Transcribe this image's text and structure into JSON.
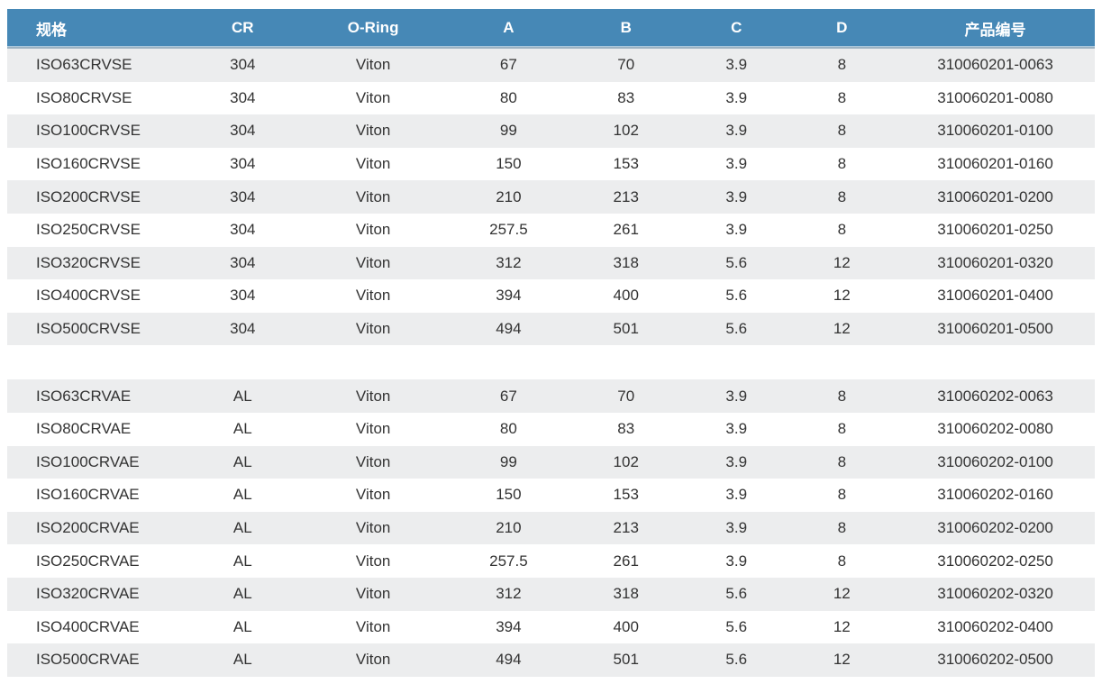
{
  "colors": {
    "header_bg": "#4688b6",
    "header_text": "#ffffff",
    "row_alt_bg": "#ecedee",
    "row_bg": "#ffffff",
    "body_text": "#333333"
  },
  "table": {
    "columns": [
      {
        "key": "spec",
        "label": "规格",
        "align": "left"
      },
      {
        "key": "cr",
        "label": "CR",
        "align": "center"
      },
      {
        "key": "oring",
        "label": "O-Ring",
        "align": "center"
      },
      {
        "key": "a",
        "label": "A",
        "align": "center"
      },
      {
        "key": "b",
        "label": "B",
        "align": "center"
      },
      {
        "key": "c",
        "label": "C",
        "align": "center"
      },
      {
        "key": "d",
        "label": "D",
        "align": "center"
      },
      {
        "key": "pn",
        "label": "产品编号",
        "align": "center"
      }
    ],
    "groups": [
      {
        "rows": [
          [
            "ISO63CRVSE",
            "304",
            "Viton",
            "67",
            "70",
            "3.9",
            "8",
            "310060201-0063"
          ],
          [
            "ISO80CRVSE",
            "304",
            "Viton",
            "80",
            "83",
            "3.9",
            "8",
            "310060201-0080"
          ],
          [
            "ISO100CRVSE",
            "304",
            "Viton",
            "99",
            "102",
            "3.9",
            "8",
            "310060201-0100"
          ],
          [
            "ISO160CRVSE",
            "304",
            "Viton",
            "150",
            "153",
            "3.9",
            "8",
            "310060201-0160"
          ],
          [
            "ISO200CRVSE",
            "304",
            "Viton",
            "210",
            "213",
            "3.9",
            "8",
            "310060201-0200"
          ],
          [
            "ISO250CRVSE",
            "304",
            "Viton",
            "257.5",
            "261",
            "3.9",
            "8",
            "310060201-0250"
          ],
          [
            "ISO320CRVSE",
            "304",
            "Viton",
            "312",
            "318",
            "5.6",
            "12",
            "310060201-0320"
          ],
          [
            "ISO400CRVSE",
            "304",
            "Viton",
            "394",
            "400",
            "5.6",
            "12",
            "310060201-0400"
          ],
          [
            "ISO500CRVSE",
            "304",
            "Viton",
            "494",
            "501",
            "5.6",
            "12",
            "310060201-0500"
          ]
        ]
      },
      {
        "rows": [
          [
            "ISO63CRVAE",
            "AL",
            "Viton",
            "67",
            "70",
            "3.9",
            "8",
            "310060202-0063"
          ],
          [
            "ISO80CRVAE",
            "AL",
            "Viton",
            "80",
            "83",
            "3.9",
            "8",
            "310060202-0080"
          ],
          [
            "ISO100CRVAE",
            "AL",
            "Viton",
            "99",
            "102",
            "3.9",
            "8",
            "310060202-0100"
          ],
          [
            "ISO160CRVAE",
            "AL",
            "Viton",
            "150",
            "153",
            "3.9",
            "8",
            "310060202-0160"
          ],
          [
            "ISO200CRVAE",
            "AL",
            "Viton",
            "210",
            "213",
            "3.9",
            "8",
            "310060202-0200"
          ],
          [
            "ISO250CRVAE",
            "AL",
            "Viton",
            "257.5",
            "261",
            "3.9",
            "8",
            "310060202-0250"
          ],
          [
            "ISO320CRVAE",
            "AL",
            "Viton",
            "312",
            "318",
            "5.6",
            "12",
            "310060202-0320"
          ],
          [
            "ISO400CRVAE",
            "AL",
            "Viton",
            "394",
            "400",
            "5.6",
            "12",
            "310060202-0400"
          ],
          [
            "ISO500CRVAE",
            "AL",
            "Viton",
            "494",
            "501",
            "5.6",
            "12",
            "310060202-0500"
          ]
        ]
      }
    ]
  }
}
